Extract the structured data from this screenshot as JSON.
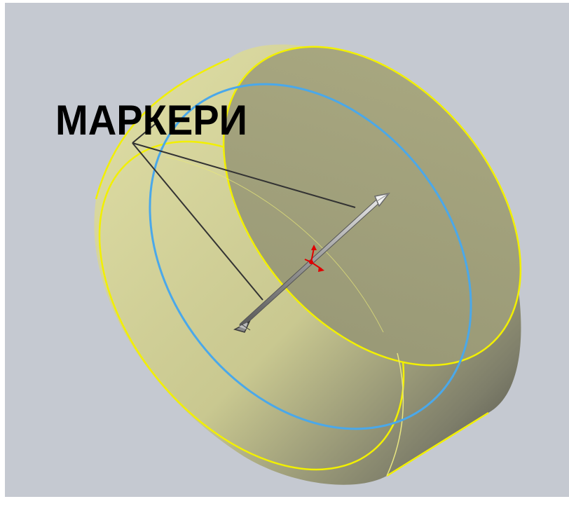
{
  "annotation": {
    "label": "МАРКЕРИ"
  },
  "colors": {
    "viewport_background": "#c5c9d1",
    "part_body": "#d6d59a",
    "part_dark": "#9d9d78",
    "edge_highlight": "#f2f000",
    "selected_edge": "#4aa8ea",
    "axis_marker": "#8a8a8a",
    "origin_marker": "#e00000",
    "leader_line": "#333333"
  },
  "icons": {
    "origin": "triad-origin-icon",
    "marker_tip": "cone-arrow-icon"
  }
}
